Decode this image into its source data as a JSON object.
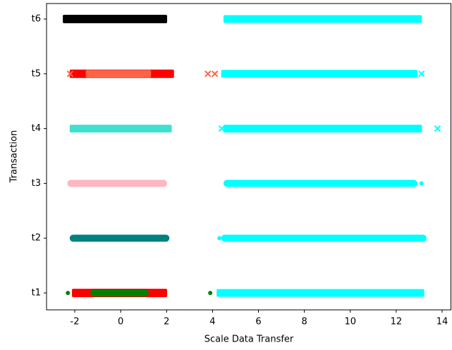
{
  "chart_data": {
    "type": "strip",
    "xlabel": "Scale Data Transfer",
    "ylabel": "Transaction",
    "categories": [
      "t1",
      "t2",
      "t3",
      "t4",
      "t5",
      "t6"
    ],
    "xlim": [
      -3.23,
      14.4
    ],
    "xticks": [
      -2,
      0,
      2,
      4,
      6,
      8,
      10,
      12,
      14
    ],
    "series": [
      {
        "y": "t1",
        "color": "#ff0000",
        "marker": "square",
        "range": [
          -2.0,
          1.9
        ],
        "outliers": []
      },
      {
        "y": "t1",
        "color": "#008000",
        "marker": "dot",
        "range": [
          -1.2,
          1.1
        ],
        "outliers": [
          -2.3,
          3.9
        ]
      },
      {
        "y": "t1",
        "color": "#00ffff",
        "marker": "x",
        "range": [
          4.3,
          13.1
        ],
        "outliers": []
      },
      {
        "y": "t2",
        "color": "#008080",
        "marker": "dot",
        "range": [
          -2.1,
          2.0
        ],
        "outliers": []
      },
      {
        "y": "t2",
        "color": "#00ffff",
        "marker": "dot",
        "range": [
          4.5,
          13.2
        ],
        "outliers": [
          4.3
        ]
      },
      {
        "y": "t3",
        "color": "#ffb6c1",
        "marker": "dot",
        "range": [
          -2.2,
          1.9
        ],
        "outliers": []
      },
      {
        "y": "t3",
        "color": "#00ffff",
        "marker": "dot",
        "range": [
          4.6,
          12.8
        ],
        "outliers": [
          13.1
        ]
      },
      {
        "y": "t4",
        "color": "#40e0d0",
        "marker": "x",
        "range": [
          -2.1,
          2.1
        ],
        "outliers": []
      },
      {
        "y": "t4",
        "color": "#00ffff",
        "marker": "x",
        "range": [
          4.6,
          13.0
        ],
        "outliers": [
          4.4,
          13.8
        ]
      },
      {
        "y": "t5",
        "color": "#ff0000",
        "marker": "triangle",
        "range": [
          -2.1,
          2.2
        ],
        "outliers": []
      },
      {
        "y": "t5",
        "color": "#ff6347",
        "marker": "x",
        "range": [
          -1.4,
          1.2
        ],
        "outliers": [
          -2.2,
          3.8,
          4.1
        ]
      },
      {
        "y": "t5",
        "color": "#00ffff",
        "marker": "x",
        "range": [
          4.5,
          12.8
        ],
        "outliers": [
          13.1
        ]
      },
      {
        "y": "t6",
        "color": "#000000",
        "marker": "triangle",
        "range": [
          -2.4,
          1.9
        ],
        "outliers": []
      },
      {
        "y": "t6",
        "color": "#00ffff",
        "marker": "x",
        "range": [
          4.6,
          13.0
        ],
        "outliers": []
      }
    ]
  }
}
